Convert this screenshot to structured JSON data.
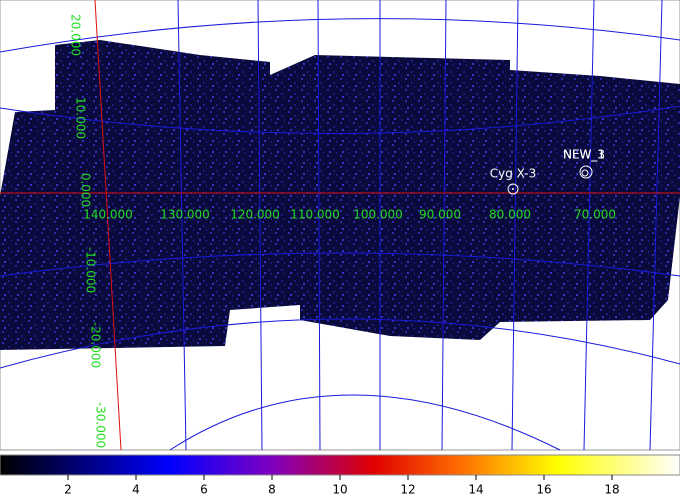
{
  "sky_map": {
    "longitude_labels": [
      "140.000",
      "130.000",
      "120.000",
      "110.000",
      "100.000",
      "90.000",
      "80.000",
      "70.000"
    ],
    "latitude_labels": [
      "20.000",
      "10.000",
      "0.000",
      "-10.000",
      "-20.000",
      "-30.000"
    ],
    "sources": [
      {
        "label": "Cyg X-3"
      },
      {
        "label": "NEW_1"
      },
      {
        "label": "NEW_3"
      }
    ]
  },
  "colorbar": {
    "xlim": [
      0,
      20
    ],
    "ticks": [
      2,
      4,
      6,
      8,
      10,
      12,
      14,
      16,
      18
    ]
  }
}
